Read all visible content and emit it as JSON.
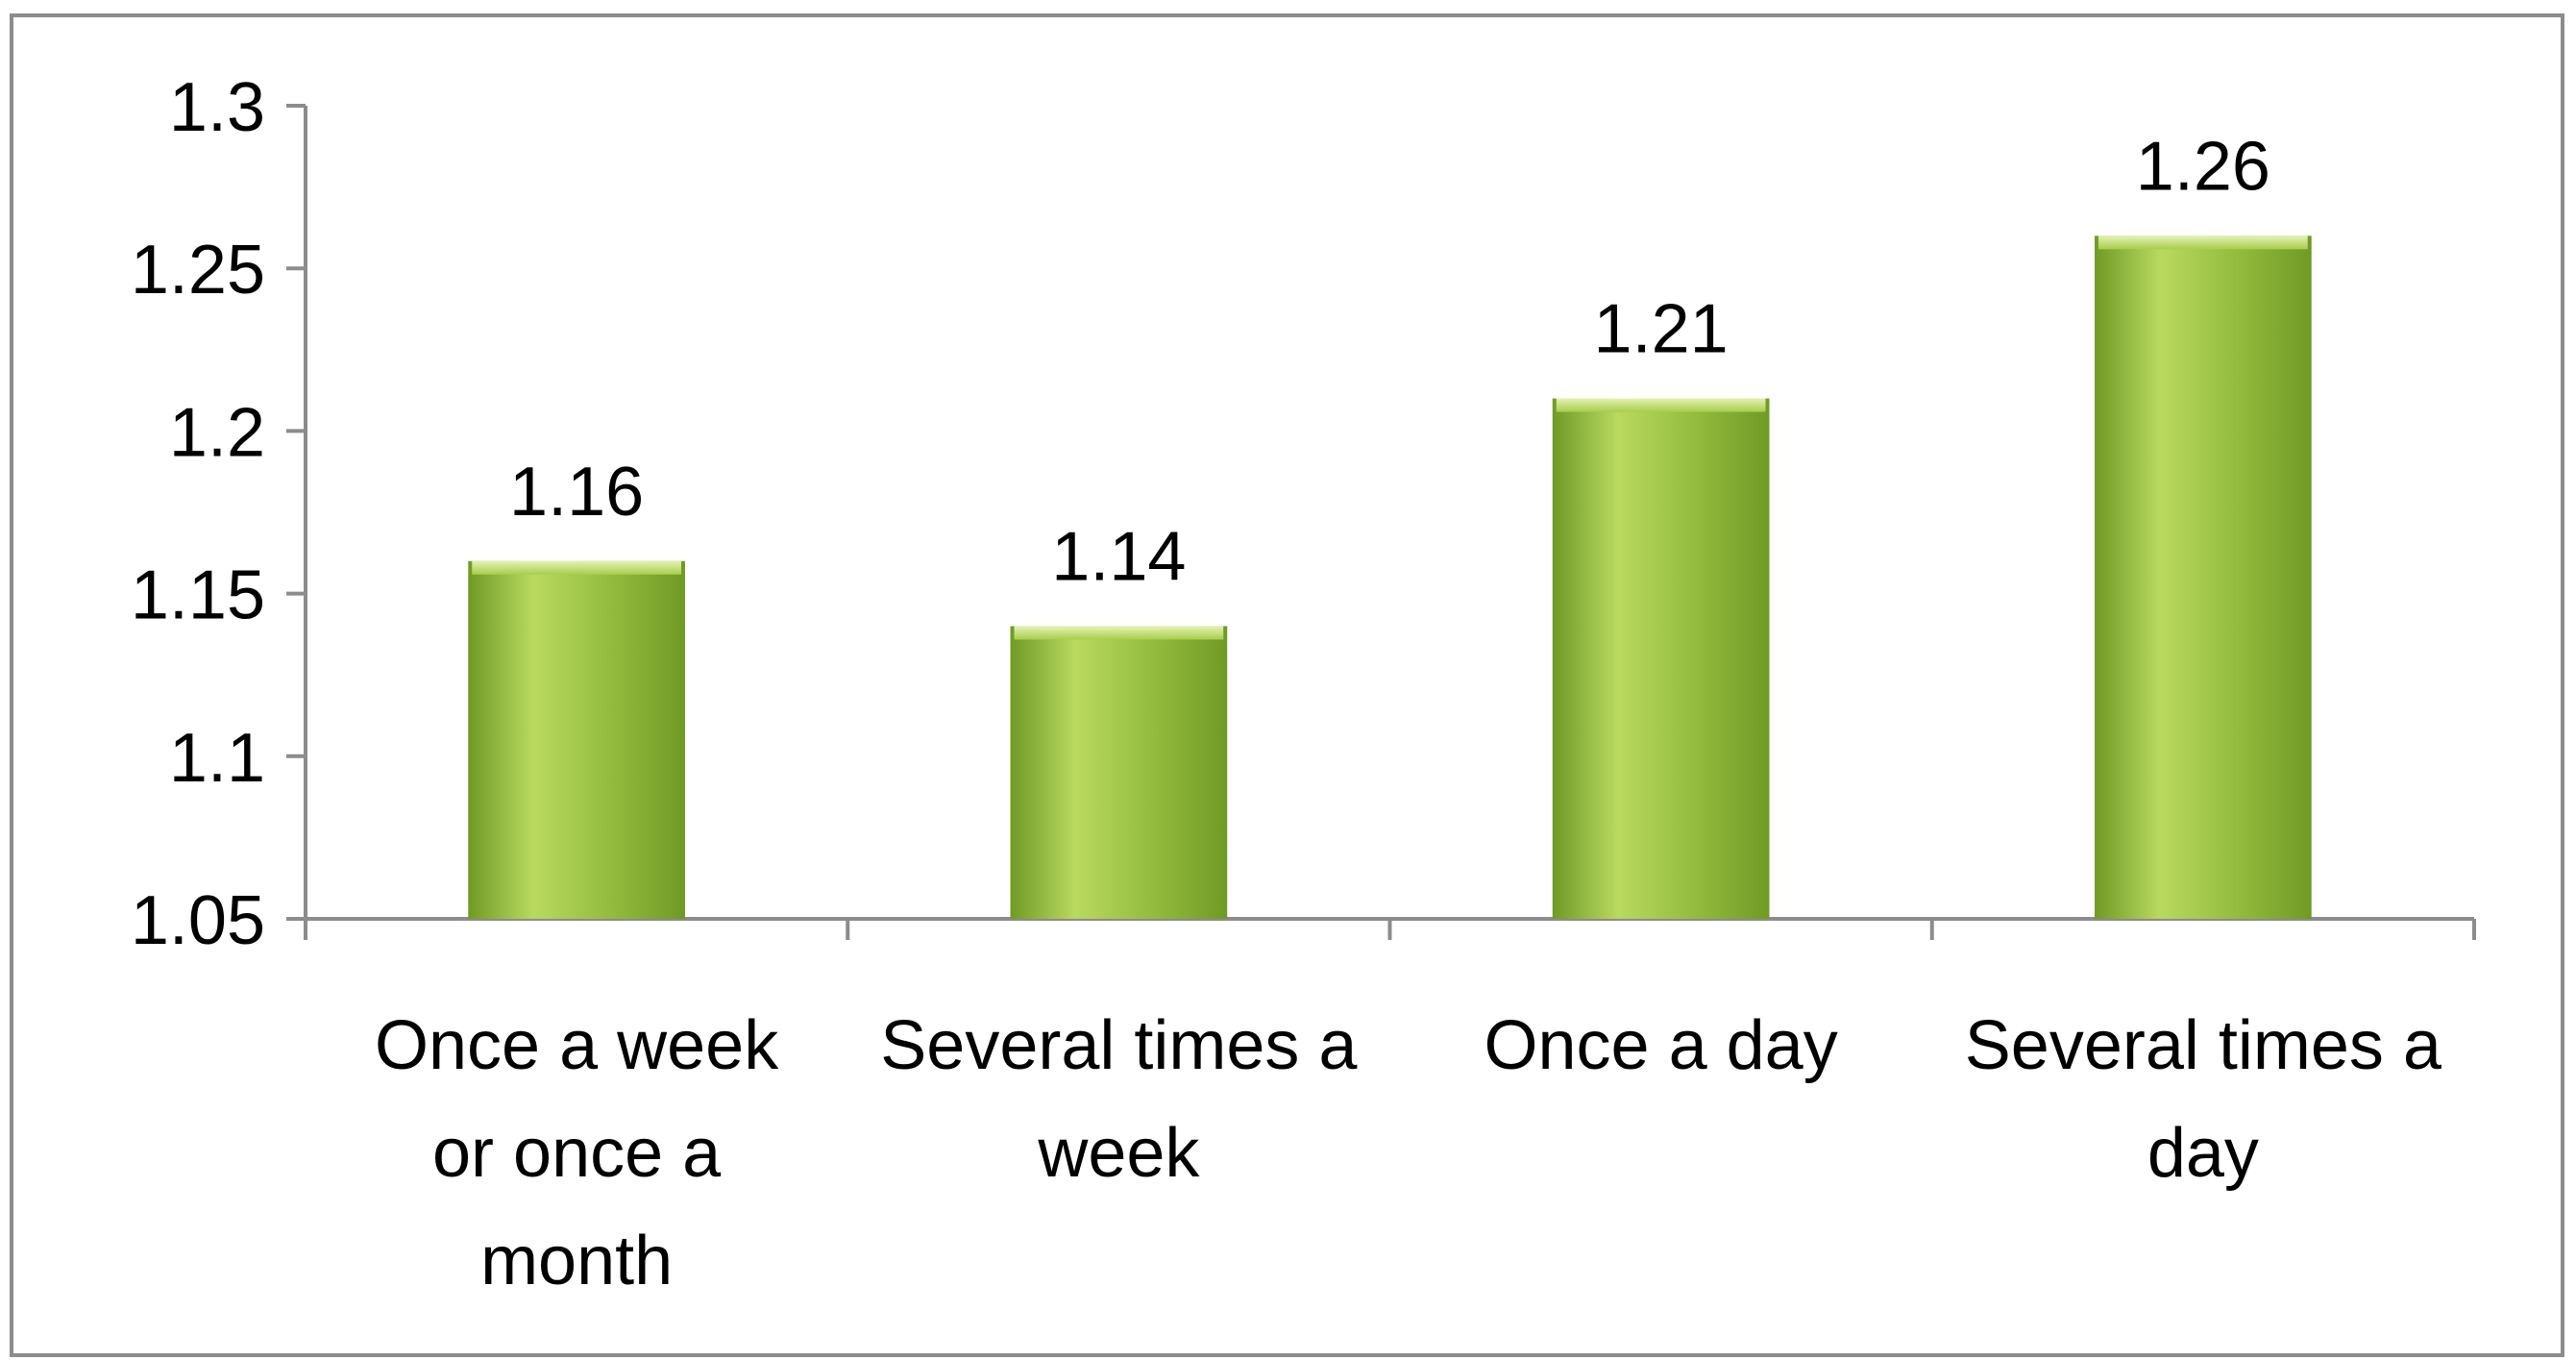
{
  "chart_data": {
    "type": "bar",
    "title": "",
    "xlabel": "",
    "ylabel": "",
    "categories": [
      [
        "Once a week",
        "or once a",
        "month"
      ],
      [
        "Several times a",
        "week"
      ],
      [
        "Once a day"
      ],
      [
        "Several times a",
        "day"
      ]
    ],
    "values": [
      1.16,
      1.14,
      1.21,
      1.26
    ],
    "data_labels": [
      "1.16",
      "1.14",
      "1.21",
      "1.26"
    ],
    "y_ticks": [
      1.05,
      1.1,
      1.15,
      1.2,
      1.25,
      1.3
    ],
    "y_tick_labels": [
      "1.05",
      "1.1",
      "1.15",
      "1.2",
      "1.25",
      "1.3"
    ],
    "ylim": [
      1.05,
      1.3
    ],
    "grid": false,
    "legend": "none",
    "colors": {
      "bar_fill": "#8fb83a",
      "bar_light": "#b9d95f",
      "bar_dark": "#6f9a25",
      "axis": "#8c8c8c",
      "frame_border": "#8c8c8c"
    }
  }
}
